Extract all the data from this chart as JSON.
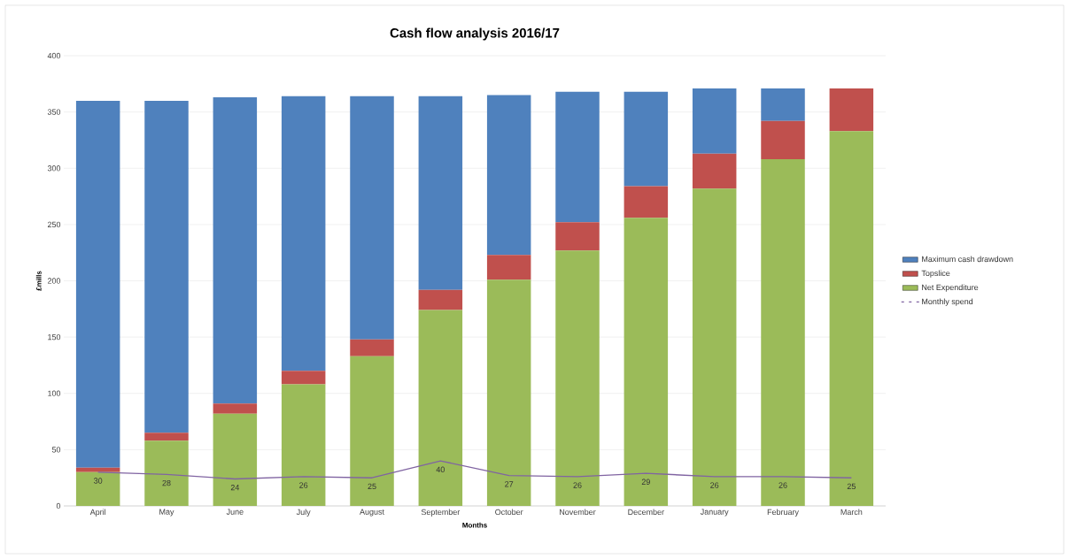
{
  "chart_data": {
    "type": "bar",
    "stacked": true,
    "title": "Cash flow analysis 2016/17",
    "xlabel": "Months",
    "ylabel": "£mills",
    "categories": [
      "April",
      "May",
      "June",
      "July",
      "August",
      "September",
      "October",
      "November",
      "December",
      "January",
      "February",
      "March"
    ],
    "series": [
      {
        "name": "Net Expenditure",
        "color": "#9bbb59",
        "values": [
          30,
          58,
          82,
          108,
          133,
          174,
          201,
          227,
          256,
          282,
          308,
          333
        ]
      },
      {
        "name": "Topslice",
        "color": "#c0504d",
        "values": [
          4,
          7,
          9,
          12,
          15,
          18,
          22,
          25,
          28,
          31,
          34,
          38
        ]
      },
      {
        "name": "Maximum cash drawdown",
        "color": "#4f81bd",
        "values": [
          326,
          295,
          272,
          244,
          216,
          172,
          142,
          116,
          84,
          58,
          29,
          0
        ]
      },
      {
        "name": "Monthly spend",
        "type": "line",
        "color": "#8064a2",
        "values": [
          30,
          28,
          24,
          26,
          25,
          40,
          27,
          26,
          29,
          26,
          26,
          25
        ],
        "value_labels": [
          "30",
          "28",
          "24",
          "26",
          "25",
          "40",
          "27",
          "26",
          "29",
          "26",
          "26",
          "25"
        ]
      }
    ],
    "ylim": [
      0,
      400
    ],
    "yticks": [
      0,
      50,
      100,
      150,
      200,
      250,
      300,
      350,
      400
    ],
    "grid": "y",
    "legend": "right",
    "marker": "none"
  }
}
